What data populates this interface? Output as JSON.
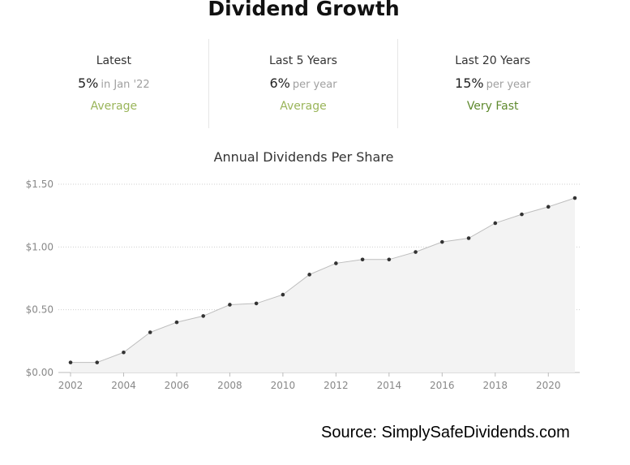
{
  "page_title": "Dividend Growth",
  "stats": [
    {
      "label": "Latest",
      "value": "5%",
      "sub": "in Jan '22",
      "rating": "Average",
      "rating_color": "#9ab55a"
    },
    {
      "label": "Last 5 Years",
      "value": "6%",
      "sub": "per year",
      "rating": "Average",
      "rating_color": "#9ab55a"
    },
    {
      "label": "Last 20 Years",
      "value": "15%",
      "sub": "per year",
      "rating": "Very Fast",
      "rating_color": "#5f8a2e"
    }
  ],
  "source": "Source: SimplySafeDividends.com",
  "chart_data": {
    "type": "area",
    "title": "Annual Dividends Per Share",
    "xlabel": "",
    "ylabel": "",
    "x": [
      2002,
      2003,
      2004,
      2005,
      2006,
      2007,
      2008,
      2009,
      2010,
      2011,
      2012,
      2013,
      2014,
      2015,
      2016,
      2017,
      2018,
      2019,
      2020,
      2021
    ],
    "values": [
      0.08,
      0.08,
      0.16,
      0.32,
      0.4,
      0.45,
      0.54,
      0.55,
      0.62,
      0.78,
      0.87,
      0.9,
      0.9,
      0.96,
      1.04,
      1.07,
      1.19,
      1.26,
      1.32,
      1.39
    ],
    "xticks": [
      "2002",
      "2004",
      "2006",
      "2008",
      "2010",
      "2012",
      "2014",
      "2016",
      "2018",
      "2020"
    ],
    "xtick_values": [
      2002,
      2004,
      2006,
      2008,
      2010,
      2012,
      2014,
      2016,
      2018,
      2020
    ],
    "yticks": [
      "$0.00",
      "$0.50",
      "$1.00",
      "$1.50"
    ],
    "ytick_values": [
      0,
      0.5,
      1.0,
      1.5
    ],
    "ylim": [
      0,
      1.5
    ],
    "xlim": [
      2002,
      2021
    ],
    "grid": true,
    "colors": {
      "line": "#bdbdbd",
      "fill": "#f3f3f3",
      "marker": "#333333",
      "grid": "#cfcfcf",
      "axis_text": "#888888"
    }
  }
}
